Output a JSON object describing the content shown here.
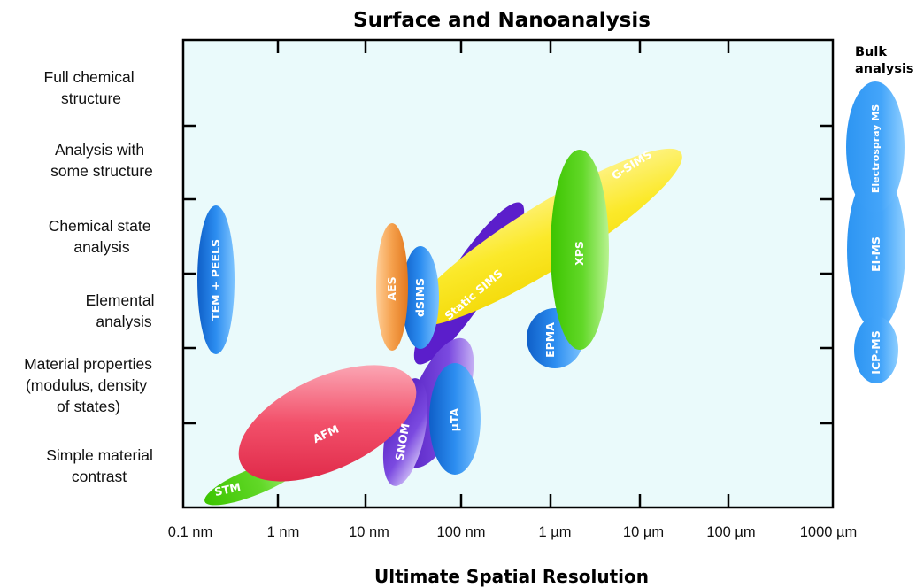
{
  "title": "Surface and Nanoanalysis",
  "x_axis_title": "Ultimate Spatial Resolution",
  "x_ticks": [
    "0.1 nm",
    "1 nm",
    "10 nm",
    "100 nm",
    "1 µm",
    "10 µm",
    "100 µm",
    "1000 µm"
  ],
  "y_categories": [
    {
      "lines": [
        "Full chemical",
        "structure"
      ]
    },
    {
      "lines": [
        "Analysis with",
        "some structure"
      ]
    },
    {
      "lines": [
        "Chemical state",
        "analysis"
      ]
    },
    {
      "lines": [
        "Elemental",
        "analysis"
      ]
    },
    {
      "lines": [
        "Material properties",
        "(modulus, density",
        "of states)"
      ]
    },
    {
      "lines": [
        "Simple material",
        "contrast"
      ]
    }
  ],
  "bulk_header": [
    "Bulk",
    "analysis"
  ],
  "techniques": {
    "tem_peels": "TEM + PEELS",
    "aes": "AES",
    "dsims": "dSIMS",
    "static_sims": "Static SIMS",
    "g_sims": "G-SIMS",
    "xps": "XPS",
    "epma": "EPMA",
    "afm": "AFM",
    "stm": "STM",
    "snom": "SNOM",
    "uta": "µTA",
    "electrospray_ms": "Electrospray MS",
    "ei_ms": "EI-MS",
    "icp_ms": "ICP-MS"
  },
  "colors": {
    "plot_background": "#eafafb",
    "blue": "#1e7fe0",
    "yellow": "#f8e51e",
    "green": "#52d318",
    "orange": "#f59f4a",
    "purple": "#6428d2",
    "red": "#f0405a"
  }
}
